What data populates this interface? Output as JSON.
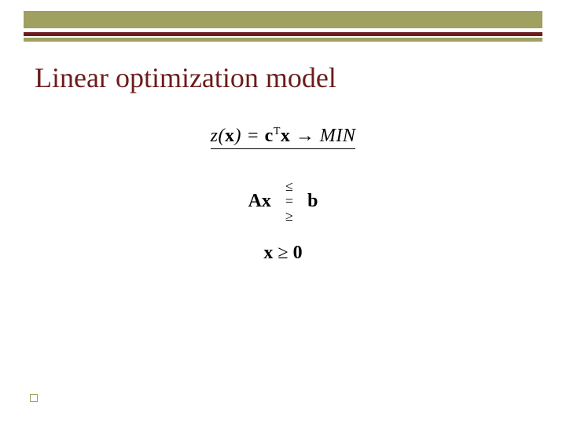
{
  "header": {
    "band_color": "#a0a060",
    "stripe_dark_color": "#6c1c1c",
    "stripe_olive_color": "#a0a060"
  },
  "title": {
    "text": "Linear optimization model",
    "color": "#6c1c1c",
    "fontsize": 36
  },
  "math": {
    "objective": {
      "z": "z",
      "open": "(",
      "x1": "x",
      "close": ")",
      "eq": " = ",
      "c": "c",
      "T": "T",
      "x2": "x",
      "arrow": " → ",
      "min": "MIN"
    },
    "constraint": {
      "Ax": "Ax",
      "le": "≤",
      "eq": "=",
      "ge": "≥",
      "b": "b"
    },
    "nonneg": {
      "x": "x",
      "rel": " ≥ ",
      "zero": "0"
    }
  },
  "bullet": {
    "border_color": "#a0a060"
  }
}
